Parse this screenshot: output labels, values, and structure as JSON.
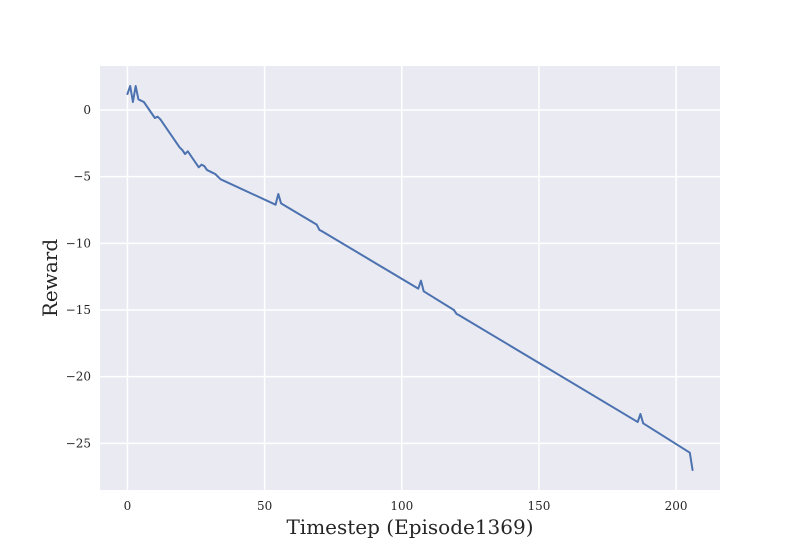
{
  "chart_data": {
    "type": "line",
    "title": "",
    "xlabel": "Timestep (Episode1369)",
    "ylabel": "Reward",
    "xlim": [
      -10,
      216
    ],
    "ylim": [
      -28.5,
      3.3
    ],
    "xticks": [
      0,
      50,
      100,
      150,
      200
    ],
    "yticks": [
      0,
      -5,
      -10,
      -15,
      -20,
      -25
    ],
    "xtick_labels": [
      "0",
      "50",
      "100",
      "150",
      "200"
    ],
    "ytick_labels": [
      "0",
      "−5",
      "−10",
      "−15",
      "−20",
      "−25"
    ],
    "grid": true,
    "legend": "none",
    "colors": {
      "background": "#eaeaf2",
      "grid": "#ffffff",
      "line": "#4c72b0"
    },
    "series": [
      {
        "x": [
          0,
          1,
          2,
          3,
          4,
          5,
          6,
          7,
          8,
          9,
          10,
          11,
          12,
          13,
          14,
          15,
          16,
          17,
          18,
          19,
          20,
          21,
          22,
          23,
          24,
          25,
          26,
          27,
          28,
          29,
          30,
          31,
          32,
          33,
          34,
          54,
          55,
          56,
          69,
          70,
          71,
          106,
          107,
          108,
          119,
          120,
          121,
          186,
          187,
          188,
          205,
          206
        ],
        "y": [
          1.2,
          1.8,
          0.6,
          1.8,
          0.8,
          0.7,
          0.6,
          0.3,
          0.0,
          -0.3,
          -0.6,
          -0.5,
          -0.7,
          -1.0,
          -1.3,
          -1.6,
          -1.9,
          -2.2,
          -2.5,
          -2.8,
          -3.0,
          -3.3,
          -3.1,
          -3.4,
          -3.7,
          -4.0,
          -4.3,
          -4.1,
          -4.2,
          -4.5,
          -4.6,
          -4.7,
          -4.8,
          -5.0,
          -5.2,
          -7.1,
          -6.3,
          -7.0,
          -8.6,
          -9.0,
          -9.1,
          -13.4,
          -12.8,
          -13.6,
          -15.0,
          -15.3,
          -15.4,
          -23.4,
          -22.8,
          -23.5,
          -25.7,
          -27.0
        ]
      }
    ]
  }
}
